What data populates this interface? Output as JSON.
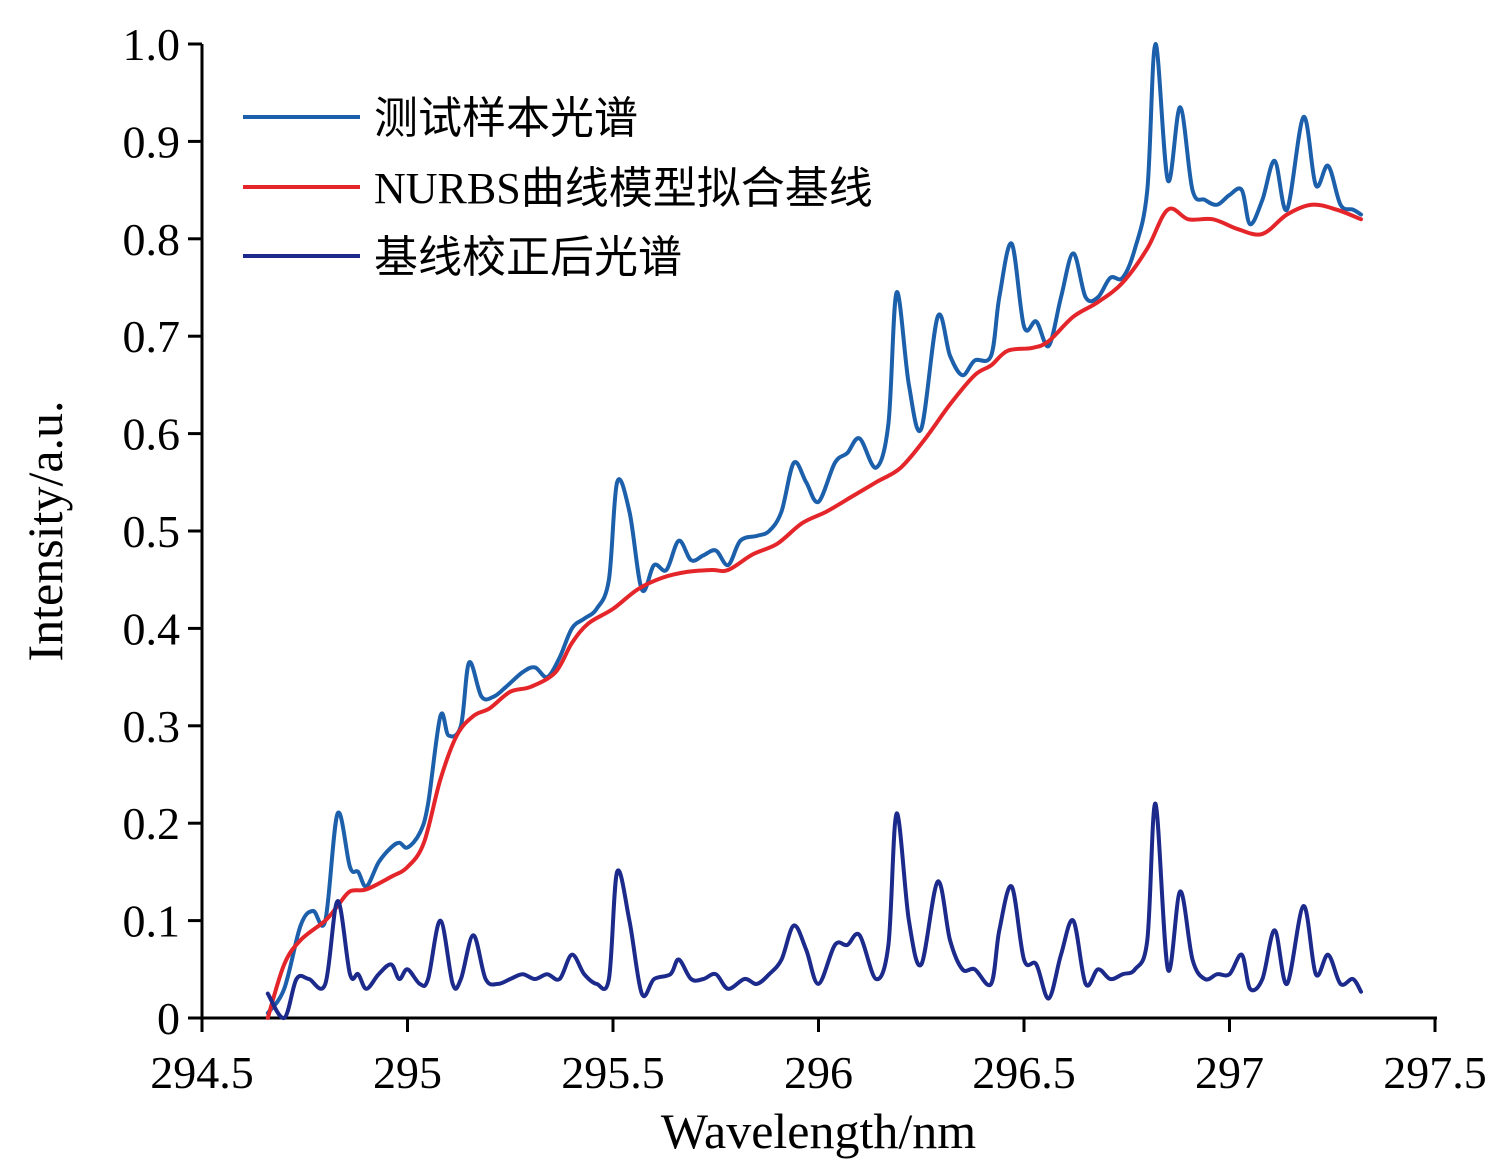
{
  "chart_data": {
    "type": "line",
    "xlabel": "Wavelength/nm",
    "ylabel": "Intensity/a.u.",
    "xlim": [
      294.5,
      297.5
    ],
    "ylim": [
      0,
      1.0
    ],
    "x_ticks": [
      "294.5",
      "295",
      "295.5",
      "296",
      "296.5",
      "297",
      "297.5"
    ],
    "y_ticks": [
      "0",
      "0.1",
      "0.2",
      "0.3",
      "0.4",
      "0.5",
      "0.6",
      "0.7",
      "0.8",
      "0.9",
      "1.0"
    ],
    "grid": false,
    "legend_position": "top-left",
    "series": [
      {
        "name": "测试样本光谱",
        "color": "#1c5fab",
        "points": [
          [
            294.66,
            0.005
          ],
          [
            294.7,
            0.03
          ],
          [
            294.74,
            0.095
          ],
          [
            294.77,
            0.11
          ],
          [
            294.8,
            0.1
          ],
          [
            294.83,
            0.21
          ],
          [
            294.86,
            0.155
          ],
          [
            294.88,
            0.15
          ],
          [
            294.9,
            0.135
          ],
          [
            294.93,
            0.16
          ],
          [
            294.96,
            0.175
          ],
          [
            294.98,
            0.18
          ],
          [
            295.0,
            0.175
          ],
          [
            295.03,
            0.19
          ],
          [
            295.05,
            0.22
          ],
          [
            295.08,
            0.31
          ],
          [
            295.1,
            0.29
          ],
          [
            295.13,
            0.3
          ],
          [
            295.15,
            0.365
          ],
          [
            295.18,
            0.33
          ],
          [
            295.21,
            0.33
          ],
          [
            295.24,
            0.34
          ],
          [
            295.28,
            0.355
          ],
          [
            295.31,
            0.36
          ],
          [
            295.34,
            0.35
          ],
          [
            295.37,
            0.37
          ],
          [
            295.4,
            0.4
          ],
          [
            295.43,
            0.41
          ],
          [
            295.46,
            0.42
          ],
          [
            295.49,
            0.45
          ],
          [
            295.51,
            0.55
          ],
          [
            295.54,
            0.52
          ],
          [
            295.57,
            0.44
          ],
          [
            295.6,
            0.465
          ],
          [
            295.63,
            0.46
          ],
          [
            295.66,
            0.49
          ],
          [
            295.69,
            0.47
          ],
          [
            295.72,
            0.475
          ],
          [
            295.75,
            0.48
          ],
          [
            295.78,
            0.465
          ],
          [
            295.81,
            0.49
          ],
          [
            295.85,
            0.495
          ],
          [
            295.88,
            0.5
          ],
          [
            295.91,
            0.52
          ],
          [
            295.94,
            0.57
          ],
          [
            295.97,
            0.55
          ],
          [
            296.0,
            0.53
          ],
          [
            296.04,
            0.57
          ],
          [
            296.07,
            0.58
          ],
          [
            296.1,
            0.595
          ],
          [
            296.14,
            0.565
          ],
          [
            296.17,
            0.61
          ],
          [
            296.19,
            0.745
          ],
          [
            296.22,
            0.65
          ],
          [
            296.25,
            0.605
          ],
          [
            296.29,
            0.72
          ],
          [
            296.32,
            0.68
          ],
          [
            296.35,
            0.66
          ],
          [
            296.38,
            0.675
          ],
          [
            296.42,
            0.68
          ],
          [
            296.44,
            0.74
          ],
          [
            296.47,
            0.795
          ],
          [
            296.5,
            0.71
          ],
          [
            296.53,
            0.715
          ],
          [
            296.56,
            0.69
          ],
          [
            296.59,
            0.74
          ],
          [
            296.62,
            0.785
          ],
          [
            296.65,
            0.74
          ],
          [
            296.68,
            0.74
          ],
          [
            296.71,
            0.76
          ],
          [
            296.74,
            0.76
          ],
          [
            296.77,
            0.79
          ],
          [
            296.8,
            0.85
          ],
          [
            296.82,
            1.0
          ],
          [
            296.85,
            0.86
          ],
          [
            296.88,
            0.935
          ],
          [
            296.91,
            0.85
          ],
          [
            296.94,
            0.84
          ],
          [
            296.97,
            0.835
          ],
          [
            297.0,
            0.845
          ],
          [
            297.03,
            0.85
          ],
          [
            297.05,
            0.815
          ],
          [
            297.08,
            0.84
          ],
          [
            297.11,
            0.88
          ],
          [
            297.14,
            0.83
          ],
          [
            297.18,
            0.925
          ],
          [
            297.21,
            0.855
          ],
          [
            297.24,
            0.875
          ],
          [
            297.27,
            0.835
          ],
          [
            297.3,
            0.83
          ],
          [
            297.32,
            0.825
          ]
        ]
      },
      {
        "name": "NURBS曲线模型拟合基线",
        "color": "#e4252a",
        "points": [
          [
            294.66,
            0.0
          ],
          [
            294.7,
            0.055
          ],
          [
            294.74,
            0.08
          ],
          [
            294.8,
            0.1
          ],
          [
            294.83,
            0.115
          ],
          [
            294.86,
            0.13
          ],
          [
            294.9,
            0.132
          ],
          [
            294.96,
            0.145
          ],
          [
            295.0,
            0.155
          ],
          [
            295.04,
            0.18
          ],
          [
            295.08,
            0.245
          ],
          [
            295.12,
            0.29
          ],
          [
            295.16,
            0.31
          ],
          [
            295.2,
            0.318
          ],
          [
            295.25,
            0.335
          ],
          [
            295.3,
            0.34
          ],
          [
            295.36,
            0.355
          ],
          [
            295.4,
            0.385
          ],
          [
            295.44,
            0.405
          ],
          [
            295.5,
            0.42
          ],
          [
            295.56,
            0.44
          ],
          [
            295.62,
            0.452
          ],
          [
            295.68,
            0.458
          ],
          [
            295.74,
            0.46
          ],
          [
            295.78,
            0.46
          ],
          [
            295.84,
            0.476
          ],
          [
            295.9,
            0.487
          ],
          [
            295.96,
            0.508
          ],
          [
            296.02,
            0.52
          ],
          [
            296.08,
            0.535
          ],
          [
            296.14,
            0.55
          ],
          [
            296.2,
            0.565
          ],
          [
            296.26,
            0.595
          ],
          [
            296.32,
            0.63
          ],
          [
            296.38,
            0.66
          ],
          [
            296.42,
            0.67
          ],
          [
            296.46,
            0.685
          ],
          [
            296.52,
            0.688
          ],
          [
            296.56,
            0.695
          ],
          [
            296.62,
            0.72
          ],
          [
            296.68,
            0.735
          ],
          [
            296.74,
            0.755
          ],
          [
            296.8,
            0.79
          ],
          [
            296.85,
            0.83
          ],
          [
            296.9,
            0.82
          ],
          [
            296.96,
            0.82
          ],
          [
            297.02,
            0.81
          ],
          [
            297.08,
            0.805
          ],
          [
            297.14,
            0.825
          ],
          [
            297.2,
            0.835
          ],
          [
            297.26,
            0.83
          ],
          [
            297.32,
            0.82
          ]
        ]
      },
      {
        "name": "基线校正后光谱",
        "color": "#1c2a8c",
        "points": [
          [
            294.66,
            0.025
          ],
          [
            294.7,
            0.0
          ],
          [
            294.73,
            0.04
          ],
          [
            294.76,
            0.04
          ],
          [
            294.8,
            0.035
          ],
          [
            294.83,
            0.12
          ],
          [
            294.86,
            0.045
          ],
          [
            294.88,
            0.045
          ],
          [
            294.9,
            0.03
          ],
          [
            294.93,
            0.045
          ],
          [
            294.96,
            0.055
          ],
          [
            294.98,
            0.04
          ],
          [
            295.0,
            0.05
          ],
          [
            295.03,
            0.035
          ],
          [
            295.05,
            0.04
          ],
          [
            295.08,
            0.1
          ],
          [
            295.11,
            0.035
          ],
          [
            295.13,
            0.04
          ],
          [
            295.16,
            0.085
          ],
          [
            295.19,
            0.04
          ],
          [
            295.22,
            0.035
          ],
          [
            295.25,
            0.04
          ],
          [
            295.28,
            0.045
          ],
          [
            295.31,
            0.04
          ],
          [
            295.34,
            0.045
          ],
          [
            295.37,
            0.04
          ],
          [
            295.4,
            0.065
          ],
          [
            295.43,
            0.045
          ],
          [
            295.46,
            0.035
          ],
          [
            295.49,
            0.04
          ],
          [
            295.51,
            0.15
          ],
          [
            295.54,
            0.1
          ],
          [
            295.57,
            0.025
          ],
          [
            295.6,
            0.04
          ],
          [
            295.64,
            0.045
          ],
          [
            295.66,
            0.06
          ],
          [
            295.69,
            0.04
          ],
          [
            295.72,
            0.04
          ],
          [
            295.75,
            0.045
          ],
          [
            295.78,
            0.03
          ],
          [
            295.82,
            0.04
          ],
          [
            295.85,
            0.035
          ],
          [
            295.88,
            0.045
          ],
          [
            295.91,
            0.06
          ],
          [
            295.94,
            0.095
          ],
          [
            295.97,
            0.07
          ],
          [
            296.0,
            0.035
          ],
          [
            296.04,
            0.075
          ],
          [
            296.07,
            0.075
          ],
          [
            296.1,
            0.085
          ],
          [
            296.14,
            0.04
          ],
          [
            296.17,
            0.075
          ],
          [
            296.19,
            0.21
          ],
          [
            296.22,
            0.1
          ],
          [
            296.25,
            0.055
          ],
          [
            296.29,
            0.14
          ],
          [
            296.32,
            0.08
          ],
          [
            296.35,
            0.05
          ],
          [
            296.38,
            0.05
          ],
          [
            296.42,
            0.035
          ],
          [
            296.44,
            0.09
          ],
          [
            296.47,
            0.135
          ],
          [
            296.5,
            0.06
          ],
          [
            296.53,
            0.055
          ],
          [
            296.56,
            0.02
          ],
          [
            296.59,
            0.065
          ],
          [
            296.62,
            0.1
          ],
          [
            296.65,
            0.035
          ],
          [
            296.68,
            0.05
          ],
          [
            296.71,
            0.04
          ],
          [
            296.74,
            0.045
          ],
          [
            296.77,
            0.05
          ],
          [
            296.8,
            0.08
          ],
          [
            296.82,
            0.22
          ],
          [
            296.85,
            0.05
          ],
          [
            296.88,
            0.13
          ],
          [
            296.91,
            0.06
          ],
          [
            296.94,
            0.04
          ],
          [
            296.97,
            0.045
          ],
          [
            297.0,
            0.045
          ],
          [
            297.03,
            0.065
          ],
          [
            297.05,
            0.03
          ],
          [
            297.08,
            0.04
          ],
          [
            297.11,
            0.09
          ],
          [
            297.14,
            0.035
          ],
          [
            297.18,
            0.115
          ],
          [
            297.21,
            0.045
          ],
          [
            297.24,
            0.065
          ],
          [
            297.27,
            0.035
          ],
          [
            297.3,
            0.04
          ],
          [
            297.32,
            0.027
          ]
        ]
      }
    ]
  }
}
